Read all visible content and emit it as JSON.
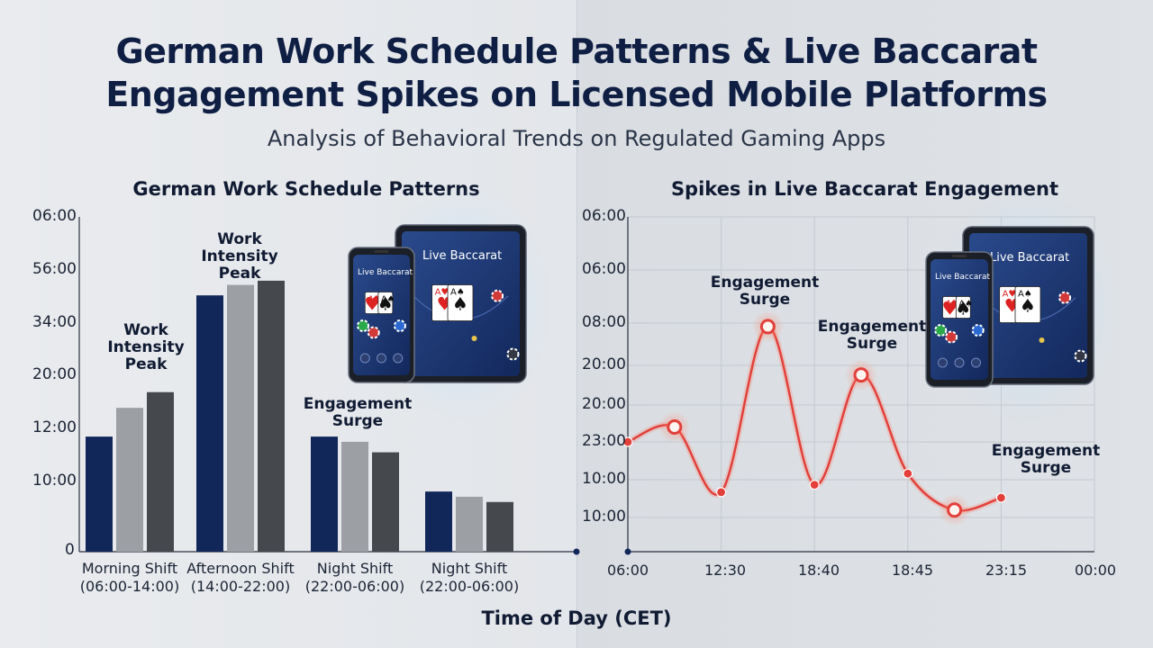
{
  "title": {
    "line1": "German Work Schedule Patterns & Live Baccarat",
    "line2": "Engagement Spikes on Licensed Mobile Platforms"
  },
  "subtitle": "Analysis of Behavioral Trends on Regulated Gaming Apps",
  "x_axis_label": "Time of Day (CET)",
  "device_screen_label": "Live Baccarat",
  "colors": {
    "navy": "#11275a",
    "gray": "#9c9fa4",
    "charcoal": "#45484d",
    "line": "#e2403a"
  },
  "chart_data": [
    {
      "type": "bar",
      "title": "German Work Schedule Patterns",
      "y_tick_labels": [
        "06:00",
        "56:00",
        "34:00",
        "20:00",
        "12:00",
        "10:00",
        "0"
      ],
      "categories": [
        {
          "line1": "Morning Shift",
          "line2": "(06:00-14:00)"
        },
        {
          "line1": "Afternoon Shift",
          "line2": "(14:00-22:00)"
        },
        {
          "line1": "Night Shift",
          "line2": "(22:00-06:00)"
        },
        {
          "line1": "Night Shift",
          "line2": "(22:00-06:00)"
        }
      ],
      "series": [
        {
          "values": [
            2.2,
            4.9,
            2.2,
            1.15
          ]
        },
        {
          "values": [
            2.75,
            5.1,
            2.1,
            1.05
          ]
        },
        {
          "values": [
            3.05,
            5.18,
            1.9,
            0.95
          ]
        }
      ],
      "ylim": [
        0,
        6.4
      ],
      "grid": false,
      "annotations": [
        {
          "text": [
            "Work",
            "Intensity",
            "Peak"
          ],
          "category": 0
        },
        {
          "text": [
            "Work",
            "Intensity",
            "Peak"
          ],
          "category": 1
        },
        {
          "text": [
            "Engagement",
            "Surge"
          ],
          "category": 2
        }
      ]
    },
    {
      "type": "line",
      "title": "Spikes in Live Baccarat Engagement",
      "y_tick_labels": [
        "06:00",
        "06:00",
        "08:00",
        "20:00",
        "20:00",
        "23:00",
        "10:00",
        "10:00"
      ],
      "x_tick_labels": [
        "06:00",
        "12:30",
        "18:40",
        "18:45",
        "23:15",
        "00:00"
      ],
      "points": [
        {
          "x": 0.0,
          "y": 2.95,
          "highlight": false
        },
        {
          "x": 0.5,
          "y": 3.35,
          "highlight": true
        },
        {
          "x": 1.0,
          "y": 1.6,
          "highlight": false
        },
        {
          "x": 1.5,
          "y": 6.05,
          "highlight": true
        },
        {
          "x": 2.0,
          "y": 1.8,
          "highlight": false
        },
        {
          "x": 2.5,
          "y": 4.75,
          "highlight": true
        },
        {
          "x": 3.0,
          "y": 2.1,
          "highlight": false
        },
        {
          "x": 3.5,
          "y": 1.12,
          "highlight": true
        },
        {
          "x": 4.0,
          "y": 1.45,
          "highlight": false
        }
      ],
      "xlim": [
        0,
        5
      ],
      "ylim": [
        0,
        9
      ],
      "grid": true,
      "annotations": [
        {
          "text": [
            "Engagement",
            "Surge"
          ],
          "point": 3
        },
        {
          "text": [
            "Engagement",
            "Surge"
          ],
          "point": 5
        },
        {
          "text": [
            "Engagement",
            "Surge"
          ],
          "point": 8
        }
      ]
    }
  ]
}
